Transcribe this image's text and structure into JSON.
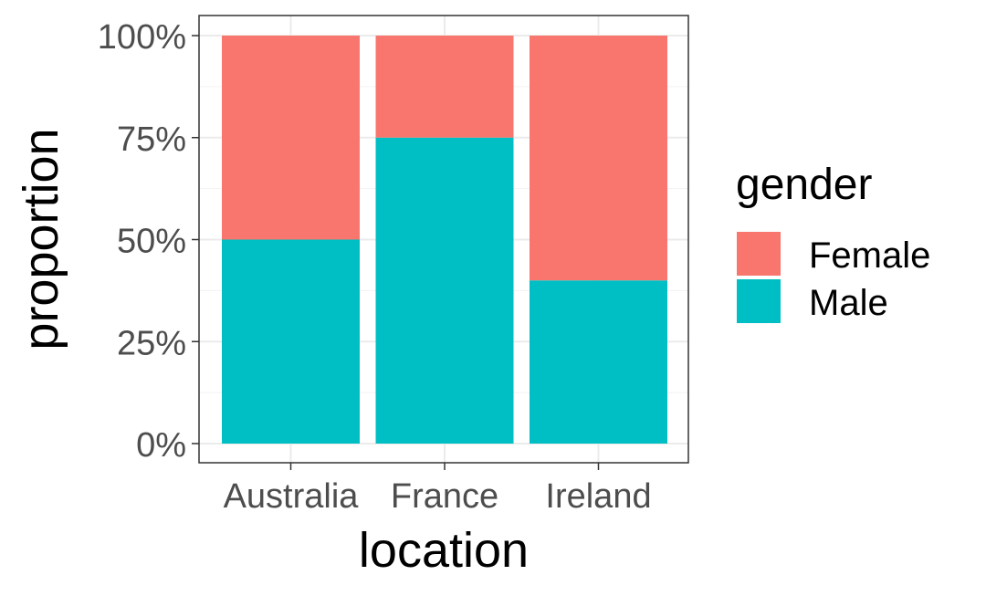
{
  "chart_data": {
    "type": "bar",
    "stacked": true,
    "categories": [
      "Australia",
      "France",
      "Ireland"
    ],
    "series": [
      {
        "name": "Female",
        "values": [
          0.5,
          0.25,
          0.6
        ],
        "color": "#F8766D"
      },
      {
        "name": "Male",
        "values": [
          0.5,
          0.75,
          0.4
        ],
        "color": "#00BFC4"
      }
    ],
    "xlabel": "location",
    "ylabel": "proportion",
    "ylim": [
      0,
      1
    ],
    "y_ticks": [
      0,
      0.25,
      0.5,
      0.75,
      1.0
    ],
    "y_tick_labels": [
      "0%",
      "25%",
      "50%",
      "75%",
      "100%"
    ],
    "grid": true,
    "legend": {
      "title": "gender",
      "position": "right",
      "entries": [
        "Female",
        "Male"
      ]
    }
  }
}
